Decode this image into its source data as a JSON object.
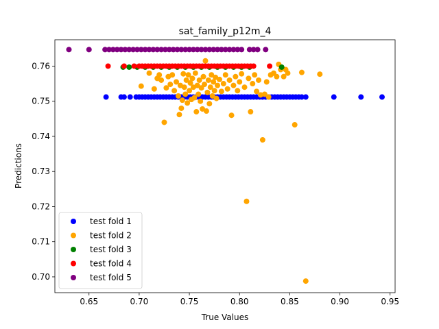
{
  "chart_data": {
    "type": "scatter",
    "title": "sat_family_p12m_4",
    "xlabel": "True Values",
    "ylabel": "Predictions",
    "xlim": [
      0.616,
      0.955
    ],
    "ylim": [
      0.6955,
      0.7675
    ],
    "xticks": [
      0.65,
      0.7,
      0.75,
      0.8,
      0.85,
      0.9,
      0.95
    ],
    "xtick_labels": [
      "0.65",
      "0.70",
      "0.75",
      "0.80",
      "0.85",
      "0.90",
      "0.95"
    ],
    "yticks": [
      0.7,
      0.71,
      0.72,
      0.73,
      0.74,
      0.75,
      0.76
    ],
    "ytick_labels": [
      "0.70",
      "0.71",
      "0.72",
      "0.73",
      "0.74",
      "0.75",
      "0.76"
    ],
    "grid": false,
    "legend_position": "lower-left",
    "series": [
      {
        "name": "test fold 1",
        "color": "#0000ff",
        "points": [
          [
            0.667,
            0.7512
          ],
          [
            0.682,
            0.7512
          ],
          [
            0.685,
            0.7512
          ],
          [
            0.691,
            0.7512
          ],
          [
            0.697,
            0.7512
          ],
          [
            0.7,
            0.7512
          ],
          [
            0.703,
            0.7512
          ],
          [
            0.706,
            0.7512
          ],
          [
            0.709,
            0.7512
          ],
          [
            0.712,
            0.7512
          ],
          [
            0.715,
            0.7512
          ],
          [
            0.718,
            0.7512
          ],
          [
            0.721,
            0.7512
          ],
          [
            0.724,
            0.7512
          ],
          [
            0.727,
            0.7512
          ],
          [
            0.73,
            0.7512
          ],
          [
            0.733,
            0.7512
          ],
          [
            0.736,
            0.7512
          ],
          [
            0.739,
            0.7512
          ],
          [
            0.742,
            0.7512
          ],
          [
            0.745,
            0.7512
          ],
          [
            0.748,
            0.7512
          ],
          [
            0.751,
            0.7512
          ],
          [
            0.754,
            0.7512
          ],
          [
            0.757,
            0.7512
          ],
          [
            0.76,
            0.7512
          ],
          [
            0.763,
            0.7512
          ],
          [
            0.766,
            0.7512
          ],
          [
            0.769,
            0.7512
          ],
          [
            0.772,
            0.7512
          ],
          [
            0.775,
            0.7512
          ],
          [
            0.778,
            0.7512
          ],
          [
            0.781,
            0.7512
          ],
          [
            0.784,
            0.7512
          ],
          [
            0.787,
            0.7512
          ],
          [
            0.79,
            0.7512
          ],
          [
            0.793,
            0.7512
          ],
          [
            0.796,
            0.7512
          ],
          [
            0.799,
            0.7512
          ],
          [
            0.802,
            0.7512
          ],
          [
            0.805,
            0.7512
          ],
          [
            0.808,
            0.7512
          ],
          [
            0.811,
            0.7512
          ],
          [
            0.814,
            0.7512
          ],
          [
            0.817,
            0.7512
          ],
          [
            0.82,
            0.7512
          ],
          [
            0.823,
            0.7512
          ],
          [
            0.826,
            0.7512
          ],
          [
            0.829,
            0.7512
          ],
          [
            0.832,
            0.7512
          ],
          [
            0.835,
            0.7512
          ],
          [
            0.838,
            0.7512
          ],
          [
            0.841,
            0.7512
          ],
          [
            0.844,
            0.7512
          ],
          [
            0.847,
            0.7512
          ],
          [
            0.85,
            0.7512
          ],
          [
            0.853,
            0.7512
          ],
          [
            0.856,
            0.7512
          ],
          [
            0.859,
            0.7512
          ],
          [
            0.862,
            0.7512
          ],
          [
            0.866,
            0.7512
          ],
          [
            0.894,
            0.7512
          ],
          [
            0.921,
            0.7512
          ],
          [
            0.942,
            0.7512
          ]
        ]
      },
      {
        "name": "test fold 2",
        "color": "#ffa500",
        "points": [
          [
            0.702,
            0.7543
          ],
          [
            0.71,
            0.758
          ],
          [
            0.715,
            0.7535
          ],
          [
            0.718,
            0.7565
          ],
          [
            0.72,
            0.7575
          ],
          [
            0.722,
            0.756
          ],
          [
            0.725,
            0.744
          ],
          [
            0.727,
            0.7538
          ],
          [
            0.729,
            0.757
          ],
          [
            0.731,
            0.7548
          ],
          [
            0.733,
            0.7575
          ],
          [
            0.735,
            0.753
          ],
          [
            0.737,
            0.7555
          ],
          [
            0.739,
            0.7515
          ],
          [
            0.74,
            0.7462
          ],
          [
            0.741,
            0.7545
          ],
          [
            0.742,
            0.748
          ],
          [
            0.743,
            0.7503
          ],
          [
            0.744,
            0.7578
          ],
          [
            0.745,
            0.754
          ],
          [
            0.746,
            0.752
          ],
          [
            0.747,
            0.756
          ],
          [
            0.748,
            0.7495
          ],
          [
            0.749,
            0.7575
          ],
          [
            0.75,
            0.753
          ],
          [
            0.751,
            0.7552
          ],
          [
            0.752,
            0.7505
          ],
          [
            0.753,
            0.7565
          ],
          [
            0.754,
            0.754
          ],
          [
            0.755,
            0.751
          ],
          [
            0.756,
            0.758
          ],
          [
            0.757,
            0.747
          ],
          [
            0.758,
            0.7545
          ],
          [
            0.759,
            0.752
          ],
          [
            0.76,
            0.756
          ],
          [
            0.761,
            0.75
          ],
          [
            0.762,
            0.7538
          ],
          [
            0.763,
            0.7478
          ],
          [
            0.764,
            0.757
          ],
          [
            0.765,
            0.7548
          ],
          [
            0.766,
            0.7615
          ],
          [
            0.767,
            0.7472
          ],
          [
            0.768,
            0.7525
          ],
          [
            0.769,
            0.756
          ],
          [
            0.77,
            0.7493
          ],
          [
            0.771,
            0.754
          ],
          [
            0.772,
            0.7575
          ],
          [
            0.773,
            0.7515
          ],
          [
            0.774,
            0.7555
          ],
          [
            0.775,
            0.753
          ],
          [
            0.776,
            0.7568
          ],
          [
            0.777,
            0.7508
          ],
          [
            0.778,
            0.7545
          ],
          [
            0.78,
            0.7562
          ],
          [
            0.782,
            0.7528
          ],
          [
            0.784,
            0.755
          ],
          [
            0.786,
            0.7575
          ],
          [
            0.788,
            0.7535
          ],
          [
            0.79,
            0.756
          ],
          [
            0.792,
            0.746
          ],
          [
            0.794,
            0.7545
          ],
          [
            0.796,
            0.757
          ],
          [
            0.798,
            0.753
          ],
          [
            0.8,
            0.7555
          ],
          [
            0.802,
            0.7578
          ],
          [
            0.805,
            0.754
          ],
          [
            0.807,
            0.7215
          ],
          [
            0.809,
            0.7565
          ],
          [
            0.811,
            0.747
          ],
          [
            0.813,
            0.755
          ],
          [
            0.815,
            0.7575
          ],
          [
            0.817,
            0.7528
          ],
          [
            0.819,
            0.756
          ],
          [
            0.821,
            0.7518
          ],
          [
            0.823,
            0.739
          ],
          [
            0.825,
            0.752
          ],
          [
            0.827,
            0.7555
          ],
          [
            0.829,
            0.7512
          ],
          [
            0.831,
            0.7575
          ],
          [
            0.834,
            0.758
          ],
          [
            0.837,
            0.757
          ],
          [
            0.839,
            0.7605
          ],
          [
            0.841,
            0.759
          ],
          [
            0.844,
            0.757
          ],
          [
            0.846,
            0.759
          ],
          [
            0.848,
            0.758
          ],
          [
            0.855,
            0.7433
          ],
          [
            0.862,
            0.7582
          ],
          [
            0.866,
            0.6988
          ],
          [
            0.88,
            0.7577
          ]
        ]
      },
      {
        "name": "test fold 3",
        "color": "#008000",
        "points": [
          [
            0.684,
            0.7597
          ],
          [
            0.69,
            0.7597
          ],
          [
            0.698,
            0.7597
          ],
          [
            0.706,
            0.7597
          ],
          [
            0.714,
            0.7597
          ],
          [
            0.722,
            0.7597
          ],
          [
            0.73,
            0.7597
          ],
          [
            0.738,
            0.7597
          ],
          [
            0.746,
            0.7597
          ],
          [
            0.754,
            0.7597
          ],
          [
            0.762,
            0.7597
          ],
          [
            0.77,
            0.7597
          ],
          [
            0.778,
            0.7597
          ],
          [
            0.786,
            0.7597
          ],
          [
            0.794,
            0.7597
          ],
          [
            0.802,
            0.7597
          ],
          [
            0.81,
            0.7597
          ],
          [
            0.842,
            0.7597
          ]
        ]
      },
      {
        "name": "test fold 4",
        "color": "#ff0000",
        "points": [
          [
            0.669,
            0.76
          ],
          [
            0.685,
            0.76
          ],
          [
            0.695,
            0.76
          ],
          [
            0.7,
            0.76
          ],
          [
            0.703,
            0.76
          ],
          [
            0.706,
            0.76
          ],
          [
            0.709,
            0.76
          ],
          [
            0.712,
            0.76
          ],
          [
            0.715,
            0.76
          ],
          [
            0.718,
            0.76
          ],
          [
            0.721,
            0.76
          ],
          [
            0.724,
            0.76
          ],
          [
            0.727,
            0.76
          ],
          [
            0.73,
            0.76
          ],
          [
            0.733,
            0.76
          ],
          [
            0.736,
            0.76
          ],
          [
            0.739,
            0.76
          ],
          [
            0.742,
            0.76
          ],
          [
            0.745,
            0.76
          ],
          [
            0.748,
            0.76
          ],
          [
            0.751,
            0.76
          ],
          [
            0.754,
            0.76
          ],
          [
            0.757,
            0.76
          ],
          [
            0.76,
            0.76
          ],
          [
            0.763,
            0.76
          ],
          [
            0.766,
            0.76
          ],
          [
            0.769,
            0.76
          ],
          [
            0.772,
            0.76
          ],
          [
            0.775,
            0.76
          ],
          [
            0.778,
            0.76
          ],
          [
            0.781,
            0.76
          ],
          [
            0.784,
            0.76
          ],
          [
            0.787,
            0.76
          ],
          [
            0.79,
            0.76
          ],
          [
            0.793,
            0.76
          ],
          [
            0.796,
            0.76
          ],
          [
            0.799,
            0.76
          ],
          [
            0.802,
            0.76
          ],
          [
            0.805,
            0.76
          ],
          [
            0.808,
            0.76
          ],
          [
            0.811,
            0.76
          ],
          [
            0.814,
            0.76
          ],
          [
            0.83,
            0.76
          ]
        ]
      },
      {
        "name": "test fold 5",
        "color": "#800080",
        "points": [
          [
            0.63,
            0.7647
          ],
          [
            0.65,
            0.7647
          ],
          [
            0.666,
            0.7647
          ],
          [
            0.67,
            0.7647
          ],
          [
            0.674,
            0.7647
          ],
          [
            0.678,
            0.7647
          ],
          [
            0.682,
            0.7647
          ],
          [
            0.686,
            0.7647
          ],
          [
            0.69,
            0.7647
          ],
          [
            0.694,
            0.7647
          ],
          [
            0.698,
            0.7647
          ],
          [
            0.702,
            0.7647
          ],
          [
            0.706,
            0.7647
          ],
          [
            0.71,
            0.7647
          ],
          [
            0.714,
            0.7647
          ],
          [
            0.718,
            0.7647
          ],
          [
            0.722,
            0.7647
          ],
          [
            0.726,
            0.7647
          ],
          [
            0.73,
            0.7647
          ],
          [
            0.734,
            0.7647
          ],
          [
            0.738,
            0.7647
          ],
          [
            0.742,
            0.7647
          ],
          [
            0.746,
            0.7647
          ],
          [
            0.75,
            0.7647
          ],
          [
            0.754,
            0.7647
          ],
          [
            0.758,
            0.7647
          ],
          [
            0.762,
            0.7647
          ],
          [
            0.766,
            0.7647
          ],
          [
            0.77,
            0.7647
          ],
          [
            0.774,
            0.7647
          ],
          [
            0.778,
            0.7647
          ],
          [
            0.782,
            0.7647
          ],
          [
            0.786,
            0.7647
          ],
          [
            0.79,
            0.7647
          ],
          [
            0.794,
            0.7647
          ],
          [
            0.798,
            0.7647
          ],
          [
            0.802,
            0.7647
          ],
          [
            0.81,
            0.7647
          ],
          [
            0.814,
            0.7647
          ],
          [
            0.818,
            0.7647
          ],
          [
            0.826,
            0.7647
          ]
        ]
      }
    ]
  }
}
